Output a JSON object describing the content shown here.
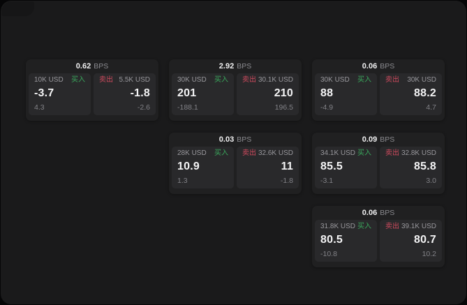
{
  "labels": {
    "buy": "买入",
    "sell": "卖出",
    "bps_unit": "BPS"
  },
  "colors": {
    "buy_text": "#3aa85c",
    "sell_text": "#cf4a5e",
    "panel_bg": "#1a1a1b",
    "card_bg": "#202021",
    "tile_bg": "#29292b"
  },
  "cards": [
    {
      "col": 1,
      "row": 1,
      "bps": "0.62",
      "buy": {
        "size": "10K USD",
        "price": "-3.7",
        "change": "4.3"
      },
      "sell": {
        "size": "5.5K USD",
        "price": "-1.8",
        "change": "-2.6"
      }
    },
    {
      "col": 2,
      "row": 1,
      "bps": "2.92",
      "buy": {
        "size": "30K USD",
        "price": "201",
        "change": "-188.1"
      },
      "sell": {
        "size": "30.1K USD",
        "price": "210",
        "change": "196.5"
      }
    },
    {
      "col": 3,
      "row": 1,
      "bps": "0.06",
      "buy": {
        "size": "30K USD",
        "price": "88",
        "change": "-4.9"
      },
      "sell": {
        "size": "30K USD",
        "price": "88.2",
        "change": "4.7"
      }
    },
    {
      "col": 2,
      "row": 2,
      "bps": "0.03",
      "buy": {
        "size": "28K USD",
        "price": "10.9",
        "change": "1.3"
      },
      "sell": {
        "size": "32.6K USD",
        "price": "11",
        "change": "-1.8"
      }
    },
    {
      "col": 3,
      "row": 2,
      "bps": "0.09",
      "buy": {
        "size": "34.1K USD",
        "price": "85.5",
        "change": "-3.1"
      },
      "sell": {
        "size": "32.8K USD",
        "price": "85.8",
        "change": "3.0"
      }
    },
    {
      "col": 3,
      "row": 3,
      "bps": "0.06",
      "buy": {
        "size": "31.8K USD",
        "price": "80.5",
        "change": "-10.8"
      },
      "sell": {
        "size": "39.1K USD",
        "price": "80.7",
        "change": "10.2"
      }
    }
  ]
}
